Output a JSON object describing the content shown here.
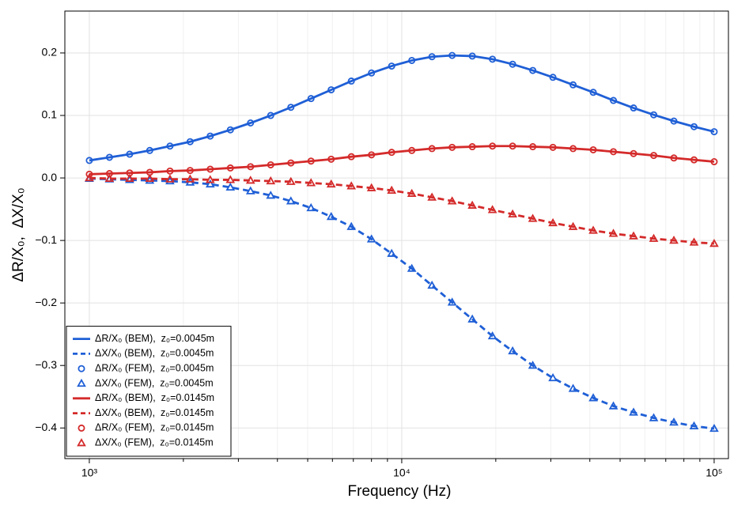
{
  "chart_data": {
    "type": "line",
    "xlabel": "Frequency (Hz)",
    "ylabel": "ΔR/X₀,  ΔX/X₀",
    "log_x": true,
    "grid": true,
    "legend": "lower left",
    "xlim": [
      835,
      111100
    ],
    "ylim": [
      -0.449,
      0.267
    ],
    "xticks": [
      {
        "value": 1000,
        "label": "10³"
      },
      {
        "value": 10000,
        "label": "10⁴"
      },
      {
        "value": 100000,
        "label": "10⁵"
      }
    ],
    "x_minor_ticks": [
      2000,
      3000,
      4000,
      5000,
      6000,
      7000,
      8000,
      9000,
      20000,
      30000,
      40000,
      50000,
      60000,
      70000,
      80000,
      90000
    ],
    "yticks": [
      {
        "value": -0.4,
        "label": "−0.4"
      },
      {
        "value": -0.3,
        "label": "−0.3"
      },
      {
        "value": -0.2,
        "label": "−0.2"
      },
      {
        "value": -0.1,
        "label": "−0.1"
      },
      {
        "value": 0,
        "label": "0.0"
      },
      {
        "value": 0.1,
        "label": "0.1"
      },
      {
        "value": 0.2,
        "label": "0.2"
      }
    ],
    "x": [
      1000,
      1160,
      1346,
      1561,
      1812,
      2102,
      2438,
      2828,
      3281,
      3807,
      4417,
      5124,
      5945,
      6897,
      8002,
      9284,
      10771,
      12496,
      14498,
      16820,
      19514,
      22640,
      26267,
      30474,
      35355,
      41019,
      47590,
      55213,
      64057,
      74319,
      86224,
      100000
    ],
    "series": [
      {
        "name": "ΔR/X₀ (BEM),  z₀=0.0045m",
        "color": "#1f5fd6",
        "style": "solid",
        "values": [
          0.028,
          0.033,
          0.038,
          0.044,
          0.051,
          0.058,
          0.067,
          0.077,
          0.088,
          0.1,
          0.113,
          0.127,
          0.141,
          0.155,
          0.168,
          0.179,
          0.188,
          0.194,
          0.196,
          0.195,
          0.19,
          0.182,
          0.172,
          0.161,
          0.149,
          0.137,
          0.124,
          0.112,
          0.101,
          0.091,
          0.082,
          0.074
        ]
      },
      {
        "name": "ΔX/X₀ (BEM),  z₀=0.0045m",
        "color": "#1f5fd6",
        "style": "dashed",
        "values": [
          -0.001,
          -0.002,
          -0.003,
          -0.004,
          -0.005,
          -0.007,
          -0.01,
          -0.015,
          -0.021,
          -0.028,
          -0.037,
          -0.048,
          -0.062,
          -0.078,
          -0.098,
          -0.121,
          -0.145,
          -0.172,
          -0.199,
          -0.226,
          -0.253,
          -0.277,
          -0.3,
          -0.32,
          -0.337,
          -0.352,
          -0.365,
          -0.375,
          -0.384,
          -0.391,
          -0.397,
          -0.401
        ]
      },
      {
        "name": "ΔR/X₀ (FEM),  z₀=0.0045m",
        "color": "#1f5fd6",
        "style": "circle",
        "values": [
          0.028,
          0.033,
          0.038,
          0.044,
          0.051,
          0.058,
          0.067,
          0.077,
          0.088,
          0.1,
          0.113,
          0.127,
          0.141,
          0.155,
          0.168,
          0.179,
          0.188,
          0.194,
          0.196,
          0.195,
          0.19,
          0.182,
          0.172,
          0.161,
          0.149,
          0.137,
          0.124,
          0.112,
          0.101,
          0.091,
          0.082,
          0.074
        ]
      },
      {
        "name": "ΔX/X₀ (FEM),  z₀=0.0045m",
        "color": "#1f5fd6",
        "style": "triangle",
        "values": [
          -0.001,
          -0.002,
          -0.003,
          -0.004,
          -0.005,
          -0.007,
          -0.01,
          -0.015,
          -0.021,
          -0.028,
          -0.037,
          -0.048,
          -0.062,
          -0.078,
          -0.098,
          -0.121,
          -0.145,
          -0.172,
          -0.199,
          -0.226,
          -0.253,
          -0.277,
          -0.3,
          -0.32,
          -0.337,
          -0.352,
          -0.365,
          -0.375,
          -0.384,
          -0.391,
          -0.397,
          -0.401
        ]
      },
      {
        "name": "ΔR/X₀ (BEM),  z₀=0.0145m",
        "color": "#d42a2a",
        "style": "solid",
        "values": [
          0.006,
          0.007,
          0.008,
          0.009,
          0.011,
          0.012,
          0.014,
          0.016,
          0.018,
          0.021,
          0.024,
          0.027,
          0.03,
          0.034,
          0.037,
          0.041,
          0.044,
          0.047,
          0.049,
          0.05,
          0.051,
          0.051,
          0.05,
          0.049,
          0.047,
          0.045,
          0.042,
          0.039,
          0.036,
          0.032,
          0.029,
          0.026
        ]
      },
      {
        "name": "ΔX/X₀ (BEM),  z₀=0.0145m",
        "color": "#d42a2a",
        "style": "dashed",
        "values": [
          0,
          -0.001,
          -0.001,
          -0.001,
          -0.002,
          -0.002,
          -0.003,
          -0.003,
          -0.004,
          -0.005,
          -0.006,
          -0.008,
          -0.01,
          -0.013,
          -0.016,
          -0.02,
          -0.025,
          -0.031,
          -0.037,
          -0.044,
          -0.051,
          -0.058,
          -0.065,
          -0.072,
          -0.078,
          -0.084,
          -0.089,
          -0.093,
          -0.097,
          -0.1,
          -0.103,
          -0.105
        ]
      },
      {
        "name": "ΔR/X₀ (FEM),  z₀=0.0145m",
        "color": "#d42a2a",
        "style": "circle",
        "values": [
          0.006,
          0.007,
          0.008,
          0.009,
          0.011,
          0.012,
          0.014,
          0.016,
          0.018,
          0.021,
          0.024,
          0.027,
          0.03,
          0.034,
          0.037,
          0.041,
          0.044,
          0.047,
          0.049,
          0.05,
          0.051,
          0.051,
          0.05,
          0.049,
          0.047,
          0.045,
          0.042,
          0.039,
          0.036,
          0.032,
          0.029,
          0.026
        ]
      },
      {
        "name": "ΔX/X₀ (FEM),  z₀=0.0145m",
        "color": "#d42a2a",
        "style": "triangle",
        "values": [
          0,
          -0.001,
          -0.001,
          -0.001,
          -0.002,
          -0.002,
          -0.003,
          -0.003,
          -0.004,
          -0.005,
          -0.006,
          -0.008,
          -0.01,
          -0.013,
          -0.016,
          -0.02,
          -0.025,
          -0.031,
          -0.037,
          -0.044,
          -0.051,
          -0.058,
          -0.065,
          -0.072,
          -0.078,
          -0.084,
          -0.089,
          -0.093,
          -0.097,
          -0.1,
          -0.103,
          -0.105
        ]
      }
    ]
  }
}
